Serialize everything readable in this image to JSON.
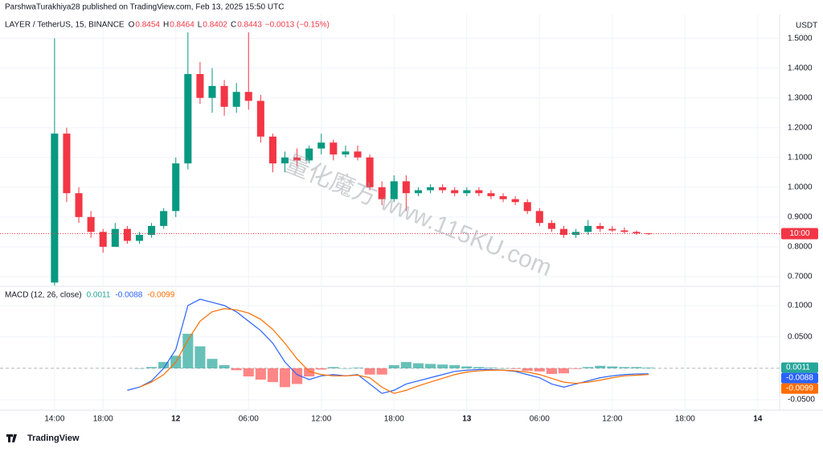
{
  "header": {
    "publisher": "ParshwaTurakhiya28 published on TradingView.com, Feb 13, 2025 15:50 UTC"
  },
  "footer": {
    "brand": "TradingView"
  },
  "watermark": "量化魔方 www.115KU.com",
  "chart_data": [
    {
      "type": "candlestick",
      "title": "LAYER / TetherUS, 15, BINANCE",
      "legend": {
        "o_label": "O",
        "o": 0.8454,
        "h_label": "H",
        "h": 0.8464,
        "l_label": "L",
        "l": 0.8402,
        "c_label": "C",
        "c": 0.8443,
        "change": "−0.0013 (−0.15%)"
      },
      "axis_unit": "USDT",
      "countdown": "10:00",
      "up_color": "#089981",
      "down_color": "#f23645",
      "x": [
        14,
        15,
        16,
        17,
        18,
        19,
        20,
        21,
        22,
        23,
        24,
        25,
        26,
        27,
        28,
        29,
        30,
        31,
        32,
        33,
        34,
        35,
        36,
        37,
        38,
        39,
        40,
        41,
        42,
        43,
        44,
        45,
        46,
        47,
        48,
        49,
        50,
        51,
        52,
        53,
        54,
        55,
        56,
        57,
        58,
        59,
        60,
        61,
        62,
        63
      ],
      "open": [
        0.68,
        1.18,
        0.98,
        0.9,
        0.85,
        0.8,
        0.86,
        0.82,
        0.84,
        0.87,
        0.92,
        1.08,
        1.38,
        1.3,
        1.34,
        1.27,
        1.32,
        1.29,
        1.17,
        1.08,
        1.1,
        1.09,
        1.13,
        1.15,
        1.11,
        1.12,
        1.1,
        1.0,
        0.96,
        1.02,
        0.98,
        0.99,
        1.0,
        0.99,
        0.98,
        0.99,
        0.98,
        0.97,
        0.96,
        0.95,
        0.92,
        0.88,
        0.86,
        0.84,
        0.85,
        0.87,
        0.86,
        0.855,
        0.85,
        0.8454
      ],
      "high": [
        1.5,
        1.2,
        1.0,
        0.92,
        0.86,
        0.88,
        0.87,
        0.85,
        0.88,
        0.93,
        1.1,
        1.52,
        1.42,
        1.4,
        1.36,
        1.35,
        1.52,
        1.31,
        1.18,
        1.12,
        1.13,
        1.14,
        1.18,
        1.16,
        1.14,
        1.14,
        1.11,
        1.02,
        1.04,
        1.04,
        1.0,
        1.01,
        1.01,
        1.0,
        1.0,
        1.0,
        0.99,
        0.98,
        0.97,
        0.96,
        0.93,
        0.89,
        0.87,
        0.86,
        0.89,
        0.88,
        0.87,
        0.865,
        0.855,
        0.8464
      ],
      "low": [
        0.67,
        0.95,
        0.88,
        0.83,
        0.78,
        0.8,
        0.81,
        0.81,
        0.83,
        0.86,
        0.9,
        1.06,
        1.28,
        1.25,
        1.24,
        1.25,
        1.26,
        1.15,
        1.05,
        1.05,
        1.07,
        1.08,
        1.11,
        1.09,
        1.1,
        1.09,
        0.99,
        0.94,
        0.95,
        0.92,
        0.97,
        0.98,
        0.98,
        0.97,
        0.97,
        0.97,
        0.96,
        0.95,
        0.94,
        0.91,
        0.87,
        0.85,
        0.83,
        0.83,
        0.84,
        0.85,
        0.85,
        0.845,
        0.84,
        0.8402
      ],
      "close": [
        1.18,
        0.98,
        0.9,
        0.85,
        0.8,
        0.86,
        0.82,
        0.84,
        0.87,
        0.92,
        1.08,
        1.38,
        1.3,
        1.34,
        1.27,
        1.32,
        1.29,
        1.17,
        1.08,
        1.1,
        1.09,
        1.13,
        1.15,
        1.11,
        1.12,
        1.1,
        1.0,
        0.96,
        1.02,
        0.98,
        0.99,
        1.0,
        0.99,
        0.98,
        0.99,
        0.98,
        0.97,
        0.96,
        0.95,
        0.92,
        0.88,
        0.86,
        0.84,
        0.85,
        0.87,
        0.86,
        0.855,
        0.85,
        0.845,
        0.8443
      ],
      "xlim": [
        9.5,
        73.8
      ],
      "xticks": [
        {
          "value": 14,
          "label": "14:00"
        },
        {
          "value": 18,
          "label": "18:00"
        },
        {
          "value": 24,
          "label": "12"
        },
        {
          "value": 30,
          "label": "06:00"
        },
        {
          "value": 36,
          "label": "12:00"
        },
        {
          "value": 42,
          "label": "18:00"
        },
        {
          "value": 48,
          "label": "13"
        },
        {
          "value": 54,
          "label": "06:00"
        },
        {
          "value": 60,
          "label": "12:00"
        },
        {
          "value": 66,
          "label": "18:00"
        },
        {
          "value": 72,
          "label": "14"
        }
      ],
      "ylim": [
        0.67,
        1.58
      ],
      "yticks": [
        {
          "value": 0.7,
          "label": "0.7000"
        },
        {
          "value": 0.8,
          "label": "0.8000"
        },
        {
          "value": 0.9,
          "label": "0.9000"
        },
        {
          "value": 1.0,
          "label": "1.0000"
        },
        {
          "value": 1.1,
          "label": "1.1000"
        },
        {
          "value": 1.2,
          "label": "1.2000"
        },
        {
          "value": 1.3,
          "label": "1.3000"
        },
        {
          "value": 1.4,
          "label": "1.4000"
        },
        {
          "value": 1.5,
          "label": "1.5000"
        }
      ],
      "grid": true
    },
    {
      "type": "macd",
      "title": "MACD (12, 26, close)",
      "x": [
        20,
        21,
        22,
        23,
        24,
        25,
        26,
        27,
        28,
        29,
        30,
        31,
        32,
        33,
        34,
        35,
        36,
        37,
        38,
        39,
        40,
        41,
        42,
        43,
        44,
        45,
        46,
        47,
        48,
        49,
        50,
        51,
        52,
        53,
        54,
        55,
        56,
        57,
        58,
        59,
        60,
        61,
        62,
        63
      ],
      "histogram": {
        "color": "#26a69a",
        "negative_color": "#ff5252",
        "values": [
          null,
          0.0,
          0.002,
          0.01,
          0.02,
          0.055,
          0.035,
          0.015,
          0.005,
          -0.003,
          -0.013,
          -0.018,
          -0.022,
          -0.03,
          -0.025,
          -0.013,
          -0.002,
          0.002,
          0.0,
          0.001,
          -0.01,
          -0.01,
          0.005,
          0.01,
          0.008,
          0.007,
          0.006,
          0.005,
          0.003,
          0.002,
          0.001,
          0.0,
          -0.001,
          -0.004,
          -0.005,
          -0.009,
          -0.008,
          -0.001,
          0.002,
          0.004,
          0.003,
          0.002,
          0.002,
          0.0011
        ]
      },
      "series": [
        {
          "name": "MACD",
          "color": "#2962ff",
          "values": [
            -0.035,
            -0.03,
            -0.02,
            0.0,
            0.03,
            0.1,
            0.11,
            0.105,
            0.1,
            0.09,
            0.075,
            0.06,
            0.04,
            0.01,
            -0.01,
            -0.018,
            -0.012,
            -0.01,
            -0.012,
            -0.01,
            -0.025,
            -0.04,
            -0.035,
            -0.025,
            -0.02,
            -0.015,
            -0.01,
            -0.005,
            -0.003,
            -0.002,
            -0.002,
            -0.003,
            -0.005,
            -0.01,
            -0.015,
            -0.025,
            -0.03,
            -0.025,
            -0.02,
            -0.015,
            -0.012,
            -0.01,
            -0.009,
            -0.0088
          ]
        },
        {
          "name": "Signal",
          "color": "#ff6d00",
          "values": [
            null,
            -0.03,
            -0.022,
            -0.01,
            0.01,
            0.045,
            0.075,
            0.09,
            0.095,
            0.093,
            0.088,
            0.078,
            0.062,
            0.04,
            0.015,
            -0.005,
            -0.01,
            -0.012,
            -0.012,
            -0.011,
            -0.015,
            -0.03,
            -0.04,
            -0.035,
            -0.028,
            -0.022,
            -0.016,
            -0.01,
            -0.006,
            -0.004,
            -0.003,
            -0.003,
            -0.004,
            -0.006,
            -0.01,
            -0.016,
            -0.022,
            -0.024,
            -0.022,
            -0.019,
            -0.015,
            -0.012,
            -0.011,
            -0.0099
          ]
        }
      ],
      "legend_values": [
        0.0011,
        -0.0088,
        -0.0099
      ],
      "ylim": [
        -0.0667,
        0.128
      ],
      "yticks": [
        {
          "value": -0.05,
          "label": "-0.0500"
        },
        {
          "value": 0.05,
          "label": "0.0500"
        },
        {
          "value": 0.1,
          "label": "0.1000"
        }
      ],
      "grid": true
    }
  ]
}
